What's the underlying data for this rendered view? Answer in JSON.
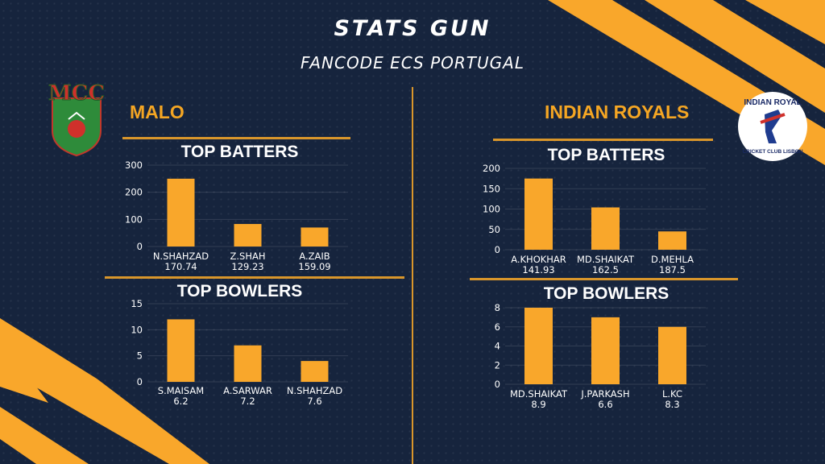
{
  "header": {
    "title": "STATS GUN",
    "subtitle": "FANCODE ECS PORTUGAL"
  },
  "colors": {
    "background": "#16243d",
    "accent": "#f5a623",
    "bar": "#f9a72b",
    "divider": "#d9962b"
  },
  "teams": [
    {
      "name": "MALO",
      "logo_label": "MCC",
      "logo_icon": "mcc-crest-icon"
    },
    {
      "name": "INDIAN ROYALS",
      "logo_label": "INDIAN ROYAL",
      "logo_sublabel": "CRICKET CLUB LISBON",
      "logo_icon": "batsman-crest-icon"
    }
  ],
  "chart_data": [
    {
      "type": "bar",
      "title": "TOP BATTERS",
      "categories": [
        "N.SHAHZAD",
        "Z.SHAH",
        "A.ZAIB"
      ],
      "sublabels": [
        "170.74",
        "129.23",
        "159.09"
      ],
      "values": [
        250,
        83,
        70
      ],
      "ylim": [
        0,
        300
      ],
      "yticks": [
        0,
        100,
        200,
        300
      ],
      "grid": true
    },
    {
      "type": "bar",
      "title": "TOP BOWLERS",
      "categories": [
        "S.MAISAM",
        "A.SARWAR",
        "N.SHAHZAD"
      ],
      "sublabels": [
        "6.2",
        "7.2",
        "7.6"
      ],
      "values": [
        12,
        7,
        4
      ],
      "ylim": [
        0,
        15
      ],
      "yticks": [
        0,
        5,
        10,
        15
      ],
      "grid": true
    },
    {
      "type": "bar",
      "title": "TOP BATTERS",
      "categories": [
        "A.KHOKHAR",
        "MD.SHAIKAT",
        "D.MEHLA"
      ],
      "sublabels": [
        "141.93",
        "162.5",
        "187.5"
      ],
      "values": [
        175,
        104,
        45
      ],
      "ylim": [
        0,
        200
      ],
      "yticks": [
        0,
        50,
        100,
        150,
        200
      ],
      "grid": true
    },
    {
      "type": "bar",
      "title": "TOP BOWLERS",
      "categories": [
        "MD.SHAIKAT",
        "J.PARKASH",
        "L.KC"
      ],
      "sublabels": [
        "8.9",
        "6.6",
        "8.3"
      ],
      "values": [
        8,
        7,
        6
      ],
      "ylim": [
        0,
        8
      ],
      "yticks": [
        0,
        2,
        4,
        6,
        8
      ],
      "grid": true
    }
  ]
}
